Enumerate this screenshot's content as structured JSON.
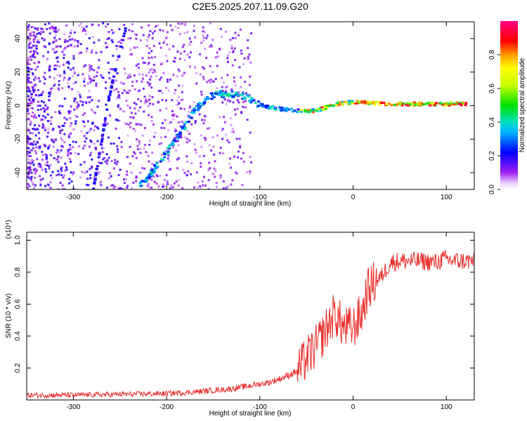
{
  "title": "C2E5.2025.207.11.09.G20",
  "chart_data": [
    {
      "type": "heatmap",
      "xlabel": "Height of straight line (km)",
      "ylabel": "Frequency (Hz)",
      "xlim": [
        -350,
        130
      ],
      "ylim": [
        -50,
        50
      ],
      "x_ticks": [
        -300,
        -200,
        -100,
        0,
        100
      ],
      "y_ticks": [
        -40,
        -20,
        0,
        20,
        40
      ],
      "colorbar": {
        "label": "Normalized spectral amplitude",
        "range": [
          0.0,
          1.0
        ],
        "ticks": [
          "0.0",
          "0.2",
          "0.4",
          "0.6",
          "0.8"
        ],
        "colormap": "rainbow (white-violet-blue-cyan-green-yellow-orange-red-magenta)"
      },
      "features": [
        {
          "name": "ridge",
          "x": [
            -230,
            -215,
            -200,
            -185,
            -170,
            -150,
            -120,
            -100,
            -80,
            -60,
            -40,
            -20,
            0,
            40,
            80,
            120
          ],
          "y": [
            -48,
            -38,
            -27,
            -15,
            -2,
            7,
            6,
            0,
            -2,
            -3,
            -3,
            1,
            2,
            1,
            1,
            1
          ]
        },
        {
          "name": "streak",
          "x": [
            -280,
            -262,
            -245
          ],
          "y": [
            -50,
            8,
            47
          ]
        }
      ]
    },
    {
      "type": "line",
      "xlabel": "Height of straight line (km)",
      "ylabel": "SNR (10 * v/v)",
      "y_multiplier": "(x10⁴)",
      "xlim": [
        -350,
        130
      ],
      "ylim": [
        0,
        1.05
      ],
      "x_ticks": [
        -300,
        -200,
        -100,
        0,
        100
      ],
      "y_ticks": [
        0.2,
        0.4,
        0.6,
        0.8,
        1.0
      ],
      "y_tick_labels": [
        "0.2",
        "0.4",
        "0.6",
        "0.8",
        "1.0"
      ],
      "series": [
        {
          "color": "#e8302c",
          "x": [
            -350,
            -300,
            -250,
            -200,
            -170,
            -150,
            -130,
            -110,
            -90,
            -75,
            -60,
            -50,
            -40,
            -30,
            -20,
            -10,
            0,
            10,
            15,
            20,
            30,
            40,
            50,
            70,
            90,
            95,
            100,
            110,
            130
          ],
          "y": [
            0.03,
            0.03,
            0.035,
            0.04,
            0.05,
            0.06,
            0.07,
            0.09,
            0.11,
            0.14,
            0.18,
            0.26,
            0.33,
            0.43,
            0.54,
            0.45,
            0.45,
            0.55,
            0.68,
            0.72,
            0.77,
            0.86,
            0.87,
            0.87,
            0.86,
            0.88,
            0.88,
            0.87,
            0.87
          ]
        }
      ]
    }
  ]
}
